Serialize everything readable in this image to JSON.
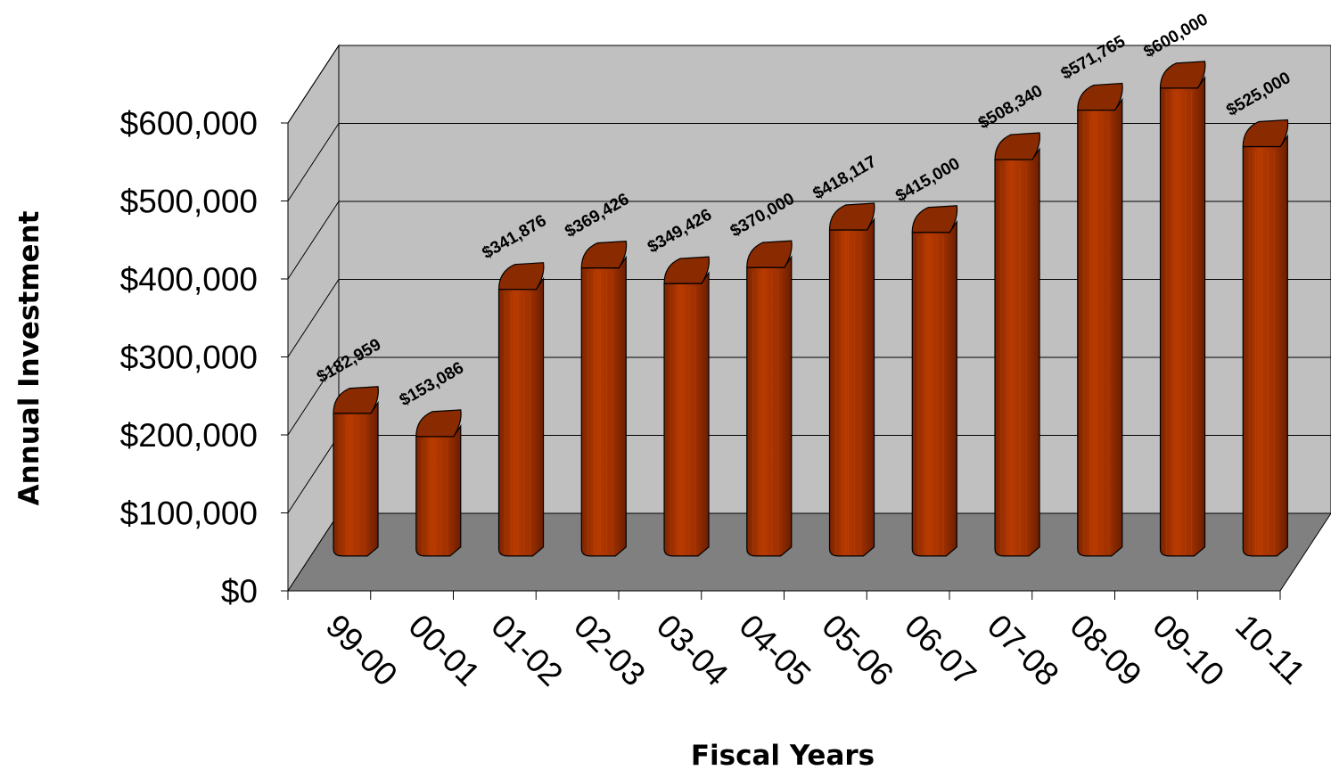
{
  "chart_data": {
    "type": "bar",
    "title": "",
    "xlabel": "Fiscal Years",
    "ylabel": "Annual Investment",
    "categories": [
      "99-00",
      "00-01",
      "01-02",
      "02-03",
      "03-04",
      "04-05",
      "05-06",
      "06-07",
      "07-08",
      "08-09",
      "09-10",
      "10-11"
    ],
    "values": [
      182959,
      153086,
      341876,
      369426,
      349426,
      370000,
      418117,
      415000,
      508340,
      571765,
      600000,
      525000
    ],
    "data_labels": [
      "$182,959",
      "$153,086",
      "$341,876",
      "$369,426",
      "$349,426",
      "$370,000",
      "$418,117",
      "$415,000",
      "$508,340",
      "$571,765",
      "$600,000",
      "$525,000"
    ],
    "y_ticks": [
      "$0",
      "$100,000",
      "$200,000",
      "$300,000",
      "$400,000",
      "$500,000",
      "$600,000"
    ],
    "ylim": [
      0,
      600000
    ],
    "grid": true,
    "legend": "none",
    "style": "3d cylinder columns",
    "colors": {
      "bar": "#a83200",
      "bar_top": "#8a2a00",
      "wall": "#c0c0c0",
      "floor": "#808080"
    }
  }
}
